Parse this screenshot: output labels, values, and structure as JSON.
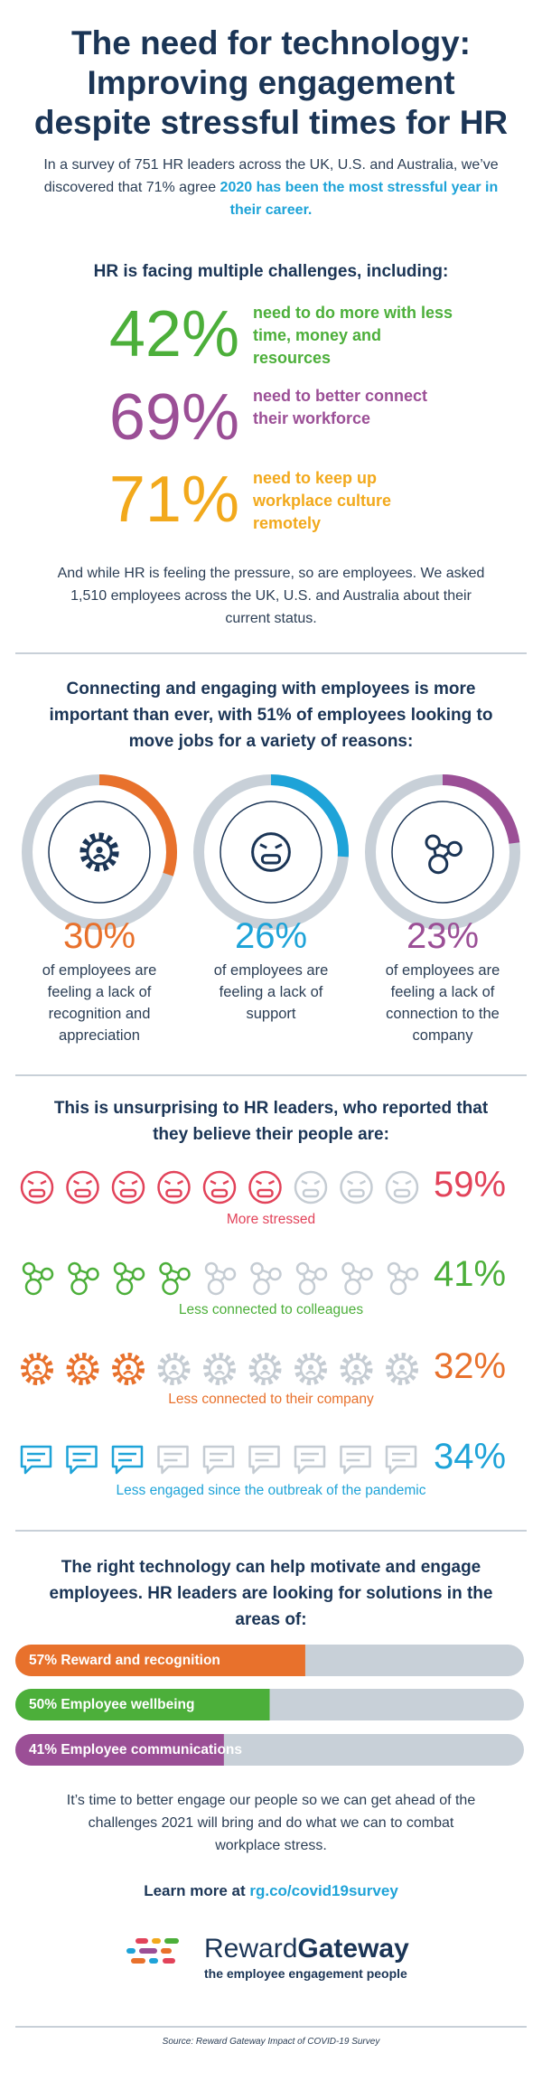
{
  "header": {
    "title_lines": [
      "The need for technology:",
      "Improving engagement",
      "despite stressful times for HR"
    ],
    "intro": "In a survey of 751 HR leaders across the UK, U.S. and Australia, we’ve discovered that 71% agree",
    "intro_highlight": "2020 has been the most stressful year in their career."
  },
  "challenges": {
    "heading": "HR is facing multiple challenges, including:",
    "items": [
      {
        "value_label": "42%",
        "text": "need to do more with less time, money and resources",
        "color": "#4caf3a"
      },
      {
        "value_label": "69%",
        "text": "need to better connect their workforce",
        "color": "#9b4f96"
      },
      {
        "value_label": "71%",
        "text": "need to keep up workplace culture remotely",
        "color": "#f2a91c"
      }
    ],
    "outro": "And while HR is feeling the pressure, so are employees. We asked 1,510 employees across the UK, U.S. and Australia about their current status."
  },
  "reasons": {
    "heading": "Connecting and engaging with employees is more important than ever, with 51% of employees looking to move jobs for a variety of reasons:",
    "items": [
      {
        "value": 30,
        "value_label": "30%",
        "text": "of employees are feeling a lack of recognition and appreciation",
        "color": "#e8712c"
      },
      {
        "value": 26,
        "value_label": "26%",
        "text": "of employees are feeling a lack of support",
        "color": "#1ea3d8"
      },
      {
        "value": 23,
        "value_label": "23%",
        "text": "of employees are feeling a lack of connection to the company",
        "color": "#9b4f96"
      }
    ]
  },
  "beliefs": {
    "heading": "This is unsurprising to HR leaders, who reported that they believe their people are:",
    "icons_total": 9,
    "items": [
      {
        "value_label": "59%",
        "text": "More stressed",
        "icon": "face",
        "icons_filled": 6,
        "color": "#e2435a"
      },
      {
        "value_label": "41%",
        "text": "Less connected to colleagues",
        "icon": "network",
        "icons_filled": 4,
        "color": "#4caf3a"
      },
      {
        "value_label": "32%",
        "text": "Less connected to their company",
        "icon": "gear",
        "icons_filled": 3,
        "color": "#e8712c"
      },
      {
        "value_label": "34%",
        "text": "Less engaged since the outbreak of the pandemic",
        "icon": "chat",
        "icons_filled": 3,
        "color": "#1ea3d8"
      }
    ]
  },
  "solutions": {
    "heading": "The right technology can help motivate and engage employees. HR leaders are looking for solutions in the areas of:",
    "bars": [
      {
        "value": 57,
        "label": "57% Reward and recognition",
        "color": "#e8712c"
      },
      {
        "value": 50,
        "label": "50% Employee wellbeing",
        "color": "#4caf3a"
      },
      {
        "value": 41,
        "label": "41% Employee communications",
        "color": "#9b4f96"
      }
    ],
    "outro": "It’s time to better engage our people so we can get ahead of the challenges 2021 will bring and do what we can to combat workplace stress.",
    "learn_more": "Learn more at",
    "link": "rg.co/covid19survey"
  },
  "brand": {
    "name_light": "Reward",
    "name_bold": "Gateway",
    "tagline": "the employee engagement people"
  },
  "source": "Source: Reward Gateway Impact of COVID-19 Survey"
}
